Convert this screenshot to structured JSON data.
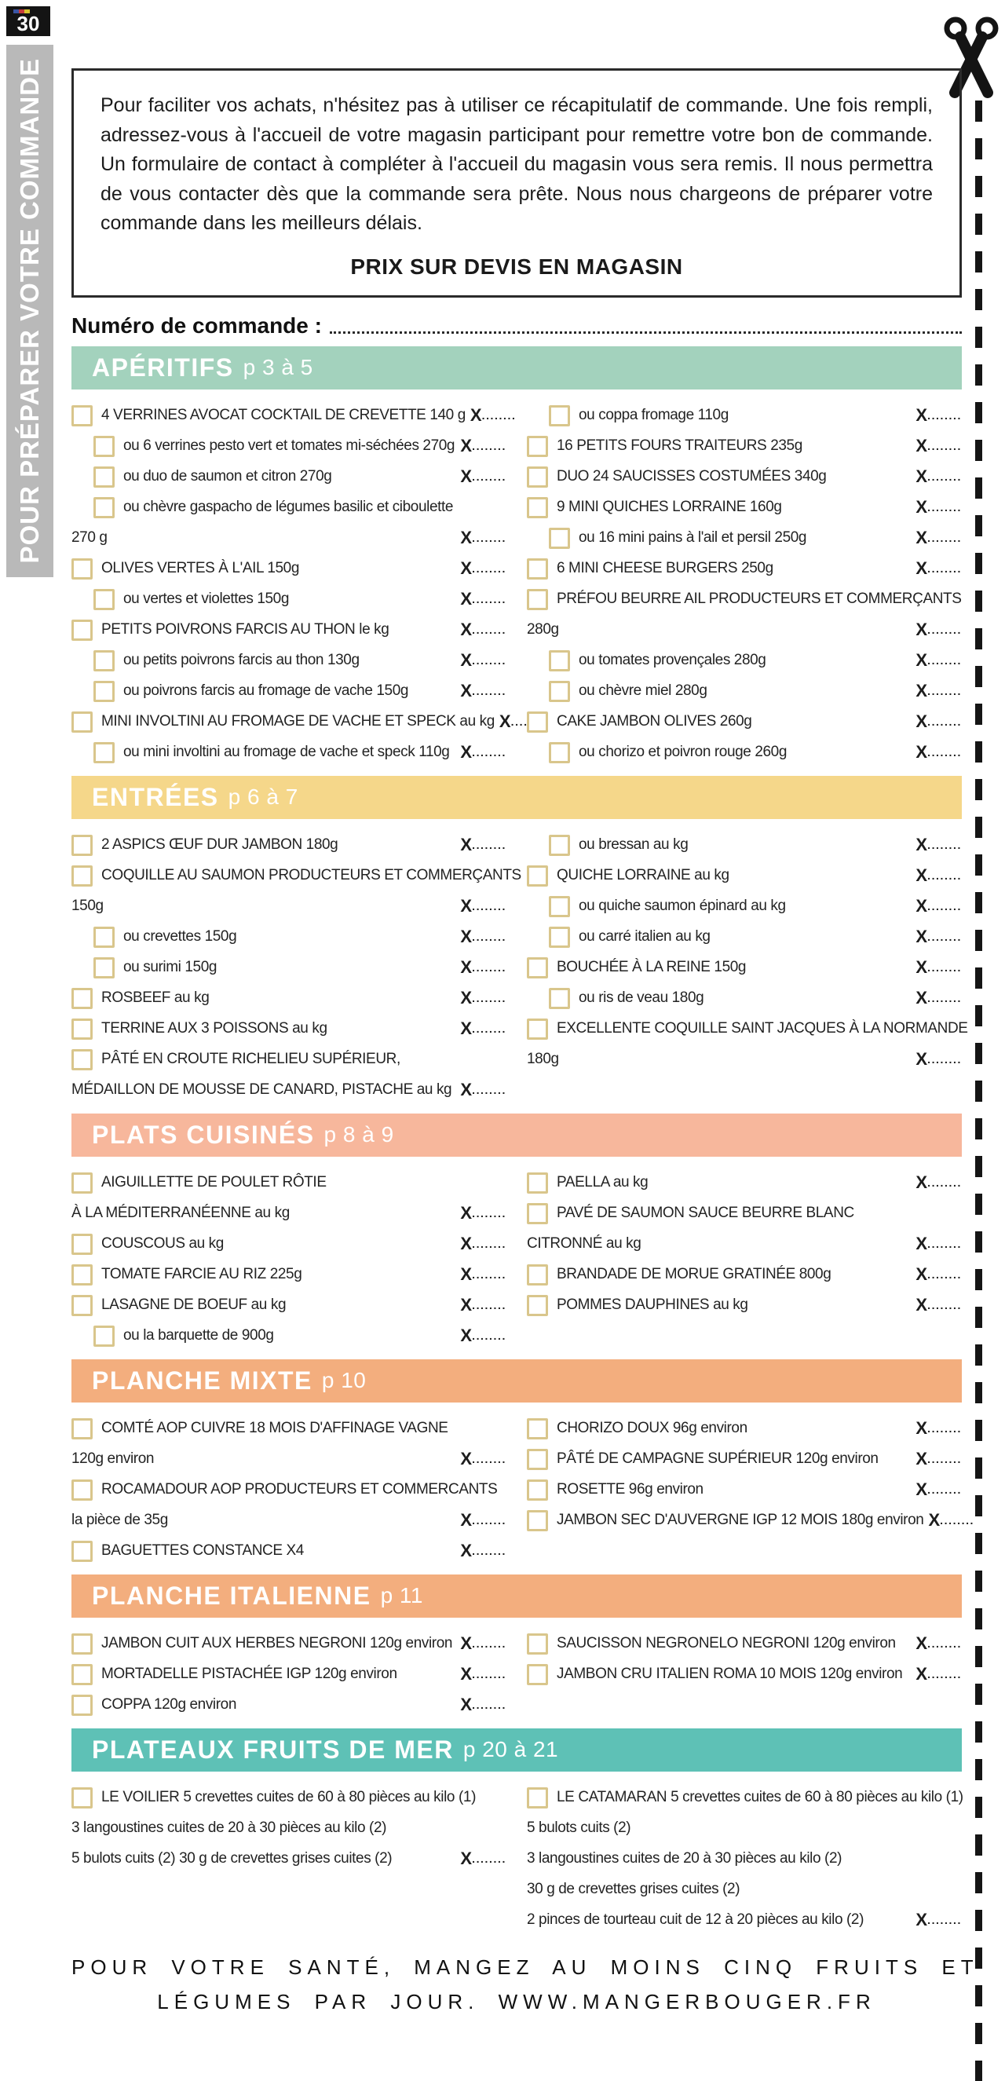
{
  "page": {
    "number": "30",
    "sidebar_label": "POUR PRÉPARER VOTRE COMMANDE",
    "intro_text": "Pour faciliter vos achats, n'hésitez pas à utiliser ce récapitulatif de commande. Une fois rempli, adressez-vous à l'accueil de votre magasin participant pour remettre votre bon de commande. Un formulaire de contact à compléter à l'accueil du magasin vous sera remis. Il nous permettra de vous contacter dès que la commande sera prête. Nous nous chargeons de préparer votre commande dans les meilleurs délais.",
    "devis_note": "PRIX SUR DEVIS EN MAGASIN",
    "order_number_label": "Numéro de commande :",
    "quantity_prefix": "X",
    "quantity_dots": "........",
    "footer_line1": "POUR VOTRE SANTÉ, MANGEZ AU MOINS CINQ FRUITS ET",
    "footer_line2": "LÉGUMES PAR JOUR. WWW.MANGERBOUGER.FR"
  },
  "colors": {
    "aperitifs_header": "#a3d2bd",
    "entrees_header": "#f5d78a",
    "plats_header": "#f7b79c",
    "planche_header": "#f3ae7e",
    "plateaux_header": "#5ec1b6",
    "checkbox_border": "#d9c68c",
    "sidebar_gray": "#b9b9b9"
  },
  "sections": [
    {
      "id": "aperitifs",
      "title": "APÉRITIFS",
      "pages": "p 3 à 5",
      "color": "#a3d2bd",
      "left": [
        {
          "text": "4 VERRINES AVOCAT COCKTAIL DE CREVETTE 140 g",
          "checkbox": true,
          "indent": false,
          "qty": true
        },
        {
          "text": "ou 6 verrines pesto vert et tomates mi-séchées 270g",
          "checkbox": true,
          "indent": true,
          "qty": true
        },
        {
          "text": "ou duo de saumon et citron 270g",
          "checkbox": true,
          "indent": true,
          "qty": true
        },
        {
          "text": "ou chèvre gaspacho de légumes basilic et ciboulette",
          "checkbox": true,
          "indent": true,
          "qty": false
        },
        {
          "text": "270 g",
          "checkbox": false,
          "indent": false,
          "qty": true
        },
        {
          "text": "OLIVES VERTES À L'AIL 150g",
          "checkbox": true,
          "indent": false,
          "qty": true
        },
        {
          "text": "ou vertes et violettes 150g",
          "checkbox": true,
          "indent": true,
          "qty": true
        },
        {
          "text": "PETITS POIVRONS FARCIS AU THON le kg",
          "checkbox": true,
          "indent": false,
          "qty": true
        },
        {
          "text": "ou petits poivrons farcis au thon 130g",
          "checkbox": true,
          "indent": true,
          "qty": true
        },
        {
          "text": "ou poivrons farcis au fromage de vache 150g",
          "checkbox": true,
          "indent": true,
          "qty": true
        },
        {
          "text": "MINI INVOLTINI AU FROMAGE DE VACHE ET SPECK au kg",
          "checkbox": true,
          "indent": false,
          "qty": true
        },
        {
          "text": "ou mini involtini au fromage de vache et speck 110g",
          "checkbox": true,
          "indent": true,
          "qty": true
        }
      ],
      "right": [
        {
          "text": "ou coppa fromage 110g",
          "checkbox": true,
          "indent": true,
          "qty": true
        },
        {
          "text": "16 PETITS FOURS TRAITEURS 235g",
          "checkbox": true,
          "indent": false,
          "qty": true
        },
        {
          "text": "DUO 24 SAUCISSES COSTUMÉES 340g",
          "checkbox": true,
          "indent": false,
          "qty": true
        },
        {
          "text": "9 MINI QUICHES LORRAINE 160g",
          "checkbox": true,
          "indent": false,
          "qty": true
        },
        {
          "text": "ou 16 mini pains à l'ail et persil 250g",
          "checkbox": true,
          "indent": true,
          "qty": true
        },
        {
          "text": "6 MINI CHEESE BURGERS 250g",
          "checkbox": true,
          "indent": false,
          "qty": true
        },
        {
          "text": "PRÉFOU BEURRE AIL PRODUCTEURS ET COMMERÇANTS",
          "checkbox": true,
          "indent": false,
          "qty": false
        },
        {
          "text": "280g",
          "checkbox": false,
          "indent": false,
          "qty": true
        },
        {
          "text": "ou tomates provençales 280g",
          "checkbox": true,
          "indent": true,
          "qty": true
        },
        {
          "text": "ou chèvre miel 280g",
          "checkbox": true,
          "indent": true,
          "qty": true
        },
        {
          "text": "CAKE JAMBON OLIVES 260g",
          "checkbox": true,
          "indent": false,
          "qty": true
        },
        {
          "text": "ou chorizo et poivron rouge 260g",
          "checkbox": true,
          "indent": true,
          "qty": true
        }
      ]
    },
    {
      "id": "entrees",
      "title": "ENTRÉES",
      "pages": "p 6 à 7",
      "color": "#f5d78a",
      "left": [
        {
          "text": "2 ASPICS ŒUF DUR JAMBON 180g",
          "checkbox": true,
          "indent": false,
          "qty": true
        },
        {
          "text": "COQUILLE AU SAUMON PRODUCTEURS ET COMMERÇANTS",
          "checkbox": true,
          "indent": false,
          "qty": false
        },
        {
          "text": "150g",
          "checkbox": false,
          "indent": false,
          "qty": true
        },
        {
          "text": "ou crevettes 150g",
          "checkbox": true,
          "indent": true,
          "qty": true
        },
        {
          "text": "ou surimi 150g",
          "checkbox": true,
          "indent": true,
          "qty": true
        },
        {
          "text": "ROSBEEF au kg",
          "checkbox": true,
          "indent": false,
          "qty": true
        },
        {
          "text": "TERRINE AUX 3 POISSONS au kg",
          "checkbox": true,
          "indent": false,
          "qty": true
        },
        {
          "text": "PÂTÉ EN CROUTE RICHELIEU SUPÉRIEUR,",
          "checkbox": true,
          "indent": false,
          "qty": false
        },
        {
          "text": "MÉDAILLON DE MOUSSE DE CANARD, PISTACHE au kg",
          "checkbox": false,
          "indent": false,
          "qty": true
        }
      ],
      "right": [
        {
          "text": "ou bressan au kg",
          "checkbox": true,
          "indent": true,
          "qty": true
        },
        {
          "text": "QUICHE LORRAINE au kg",
          "checkbox": true,
          "indent": false,
          "qty": true
        },
        {
          "text": "ou quiche saumon épinard au kg",
          "checkbox": true,
          "indent": true,
          "qty": true
        },
        {
          "text": "ou carré italien au kg",
          "checkbox": true,
          "indent": true,
          "qty": true
        },
        {
          "text": "BOUCHÉE À LA REINE 150g",
          "checkbox": true,
          "indent": false,
          "qty": true
        },
        {
          "text": "ou ris de veau 180g",
          "checkbox": true,
          "indent": true,
          "qty": true
        },
        {
          "text": "EXCELLENTE COQUILLE SAINT JACQUES À LA NORMANDE",
          "checkbox": true,
          "indent": false,
          "qty": false
        },
        {
          "text": "180g",
          "checkbox": false,
          "indent": false,
          "qty": true
        }
      ]
    },
    {
      "id": "plats-cuisines",
      "title": "PLATS CUISINÉS",
      "pages": "p 8 à 9",
      "color": "#f7b79c",
      "left": [
        {
          "text": "AIGUILLETTE DE POULET RÔTIE",
          "checkbox": true,
          "indent": false,
          "qty": false
        },
        {
          "text": "À LA MÉDITERRANÉENNE au kg",
          "checkbox": false,
          "indent": false,
          "qty": true
        },
        {
          "text": "COUSCOUS au kg",
          "checkbox": true,
          "indent": false,
          "qty": true
        },
        {
          "text": "TOMATE FARCIE AU RIZ 225g",
          "checkbox": true,
          "indent": false,
          "qty": true
        },
        {
          "text": "LASAGNE DE BOEUF au kg",
          "checkbox": true,
          "indent": false,
          "qty": true
        },
        {
          "text": "ou la barquette de 900g",
          "checkbox": true,
          "indent": true,
          "qty": true
        }
      ],
      "right": [
        {
          "text": "PAELLA au kg",
          "checkbox": true,
          "indent": false,
          "qty": true
        },
        {
          "text": "PAVÉ DE SAUMON SAUCE BEURRE BLANC",
          "checkbox": true,
          "indent": false,
          "qty": false
        },
        {
          "text": "CITRONNÉ au kg",
          "checkbox": false,
          "indent": false,
          "qty": true
        },
        {
          "text": "BRANDADE DE MORUE GRATINÉE 800g",
          "checkbox": true,
          "indent": false,
          "qty": true
        },
        {
          "text": "POMMES DAUPHINES au kg",
          "checkbox": true,
          "indent": false,
          "qty": true
        }
      ]
    },
    {
      "id": "planche-mixte",
      "title": "PLANCHE MIXTE",
      "pages": "p 10",
      "color": "#f3ae7e",
      "left": [
        {
          "text": "COMTÉ AOP CUIVRE 18 MOIS D'AFFINAGE VAGNE",
          "checkbox": true,
          "indent": false,
          "qty": false
        },
        {
          "text": "120g environ",
          "checkbox": false,
          "indent": false,
          "qty": true
        },
        {
          "text": "ROCAMADOUR AOP PRODUCTEURS ET COMMERCANTS",
          "checkbox": true,
          "indent": false,
          "qty": false
        },
        {
          "text": "la pièce de 35g",
          "checkbox": false,
          "indent": false,
          "qty": true
        },
        {
          "text": "BAGUETTES CONSTANCE X4",
          "checkbox": true,
          "indent": false,
          "qty": true
        }
      ],
      "right": [
        {
          "text": "CHORIZO DOUX 96g environ",
          "checkbox": true,
          "indent": false,
          "qty": true
        },
        {
          "text": "PÂTÉ DE CAMPAGNE SUPÉRIEUR 120g environ",
          "checkbox": true,
          "indent": false,
          "qty": true
        },
        {
          "text": "ROSETTE 96g environ",
          "checkbox": true,
          "indent": false,
          "qty": true
        },
        {
          "text": "JAMBON SEC D'AUVERGNE IGP 12 MOIS 180g environ",
          "checkbox": true,
          "indent": false,
          "qty": true
        }
      ]
    },
    {
      "id": "planche-italienne",
      "title": "PLANCHE ITALIENNE",
      "pages": "p 11",
      "color": "#f3ae7e",
      "left": [
        {
          "text": "JAMBON CUIT AUX HERBES NEGRONI 120g environ",
          "checkbox": true,
          "indent": false,
          "qty": true
        },
        {
          "text": "MORTADELLE PISTACHÉE IGP 120g environ",
          "checkbox": true,
          "indent": false,
          "qty": true
        },
        {
          "text": "COPPA 120g environ",
          "checkbox": true,
          "indent": false,
          "qty": true
        }
      ],
      "right": [
        {
          "text": "SAUCISSON NEGRONELO NEGRONI 120g environ",
          "checkbox": true,
          "indent": false,
          "qty": true
        },
        {
          "text": "JAMBON CRU ITALIEN ROMA 10 MOIS 120g environ",
          "checkbox": true,
          "indent": false,
          "qty": true
        }
      ]
    },
    {
      "id": "plateaux-fruits-de-mer",
      "title": "PLATEAUX FRUITS DE MER",
      "pages": "p 20 à 21",
      "color": "#5ec1b6",
      "left": [
        {
          "text": "LE VOILIER 5 crevettes cuites de 60 à 80 pièces au kilo (1)",
          "checkbox": true,
          "indent": false,
          "qty": false
        },
        {
          "text": "3 langoustines cuites de 20 à 30 pièces au kilo (2)",
          "checkbox": false,
          "indent": false,
          "qty": false
        },
        {
          "text": "5 bulots cuits (2) 30 g de crevettes grises cuites (2)",
          "checkbox": false,
          "indent": false,
          "qty": true
        }
      ],
      "right": [
        {
          "text": "LE CATAMARAN 5 crevettes cuites de 60 à 80 pièces au kilo (1)",
          "checkbox": true,
          "indent": false,
          "qty": false
        },
        {
          "text": "5 bulots cuits (2)",
          "checkbox": false,
          "indent": false,
          "qty": false
        },
        {
          "text": "3 langoustines cuites de 20 à 30 pièces au kilo (2)",
          "checkbox": false,
          "indent": false,
          "qty": false
        },
        {
          "text": "30 g de crevettes grises cuites (2)",
          "checkbox": false,
          "indent": false,
          "qty": false
        },
        {
          "text": "2 pinces de tourteau cuit de 12 à 20 pièces au kilo (2)",
          "checkbox": false,
          "indent": false,
          "qty": true
        }
      ]
    }
  ]
}
